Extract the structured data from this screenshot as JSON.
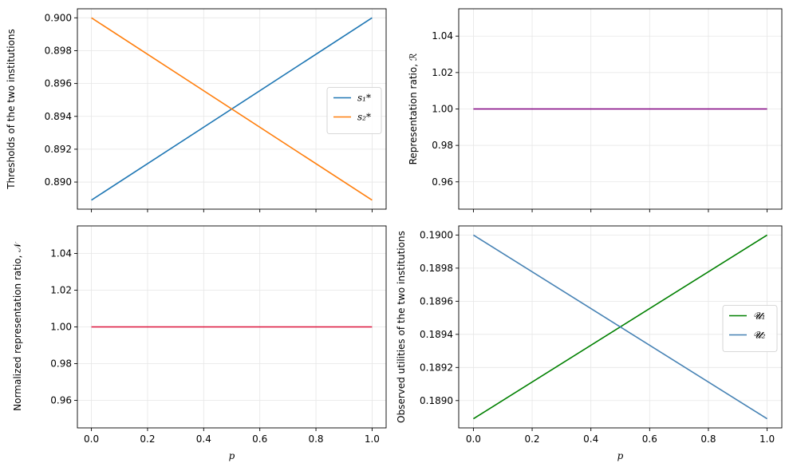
{
  "figure": {
    "rows": 2,
    "cols": 2,
    "shared_x": true
  },
  "chart_data": [
    {
      "type": "line",
      "panel": "top-left",
      "title": "",
      "xlabel": "",
      "ylabel": "Thresholds of the two institutions",
      "xlim": [
        -0.05,
        1.05
      ],
      "ylim": [
        0.88835,
        0.90055
      ],
      "xticks": [
        0.0,
        0.2,
        0.4,
        0.6,
        0.8,
        1.0
      ],
      "xtick_labels": [
        "",
        "",
        "",
        "",
        "",
        ""
      ],
      "yticks": [
        0.89,
        0.892,
        0.894,
        0.896,
        0.898,
        0.9
      ],
      "ytick_labels": [
        "0.890",
        "0.892",
        "0.894",
        "0.896",
        "0.898",
        "0.900"
      ],
      "grid": true,
      "legend": {
        "placement": "center-right"
      },
      "series": [
        {
          "name": "s₁*",
          "color": "#1f77b4",
          "x": [
            0.0,
            1.0
          ],
          "y": [
            0.8889,
            0.9
          ]
        },
        {
          "name": "s₂*",
          "color": "#ff7f0e",
          "x": [
            0.0,
            1.0
          ],
          "y": [
            0.9,
            0.8889
          ]
        }
      ]
    },
    {
      "type": "line",
      "panel": "top-right",
      "title": "",
      "xlabel": "",
      "ylabel": "Representation ratio, ℛ",
      "xlim": [
        -0.05,
        1.05
      ],
      "ylim": [
        0.945,
        1.055
      ],
      "xticks": [
        0.0,
        0.2,
        0.4,
        0.6,
        0.8,
        1.0
      ],
      "xtick_labels": [
        "",
        "",
        "",
        "",
        "",
        ""
      ],
      "yticks": [
        0.96,
        0.98,
        1.0,
        1.02,
        1.04
      ],
      "ytick_labels": [
        "0.96",
        "0.98",
        "1.00",
        "1.02",
        "1.04"
      ],
      "grid": true,
      "legend": null,
      "series": [
        {
          "color": "#800080",
          "x": [
            0.0,
            1.0
          ],
          "y": [
            1.0,
            1.0
          ]
        }
      ]
    },
    {
      "type": "line",
      "panel": "bottom-left",
      "title": "",
      "xlabel": "p",
      "ylabel": "Normalized representation ratio, 𝒩",
      "xlim": [
        -0.05,
        1.05
      ],
      "ylim": [
        0.945,
        1.055
      ],
      "xticks": [
        0.0,
        0.2,
        0.4,
        0.6,
        0.8,
        1.0
      ],
      "xtick_labels": [
        "0.0",
        "0.2",
        "0.4",
        "0.6",
        "0.8",
        "1.0"
      ],
      "yticks": [
        0.96,
        0.98,
        1.0,
        1.02,
        1.04
      ],
      "ytick_labels": [
        "0.96",
        "0.98",
        "1.00",
        "1.02",
        "1.04"
      ],
      "grid": true,
      "legend": null,
      "series": [
        {
          "color": "#dc143c",
          "x": [
            0.0,
            1.0
          ],
          "y": [
            1.0,
            1.0
          ]
        }
      ]
    },
    {
      "type": "line",
      "panel": "bottom-right",
      "title": "",
      "xlabel": "p",
      "ylabel": "Observed utilities of the two institutions",
      "xlim": [
        -0.05,
        1.05
      ],
      "ylim": [
        0.188835,
        0.190055
      ],
      "xticks": [
        0.0,
        0.2,
        0.4,
        0.6,
        0.8,
        1.0
      ],
      "xtick_labels": [
        "0.0",
        "0.2",
        "0.4",
        "0.6",
        "0.8",
        "1.0"
      ],
      "yticks": [
        0.189,
        0.1892,
        0.1894,
        0.1896,
        0.1898,
        0.19
      ],
      "ytick_labels": [
        "0.1890",
        "0.1892",
        "0.1894",
        "0.1896",
        "0.1898",
        "0.1900"
      ],
      "grid": true,
      "legend": {
        "placement": "center-right"
      },
      "series": [
        {
          "name": "𝓤₁",
          "color": "#008000",
          "x": [
            0.0,
            1.0
          ],
          "y": [
            0.18889,
            0.19
          ]
        },
        {
          "name": "𝓤₂",
          "color": "#4682b4",
          "x": [
            0.0,
            1.0
          ],
          "y": [
            0.19,
            0.18889
          ]
        }
      ]
    }
  ]
}
